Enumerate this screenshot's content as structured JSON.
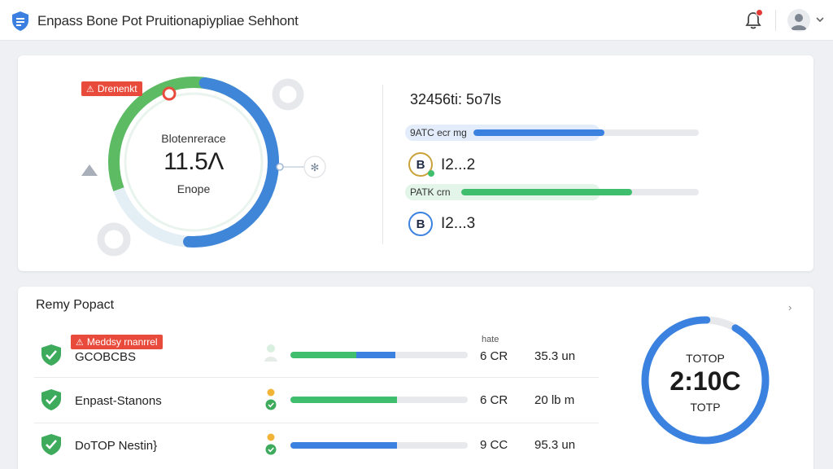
{
  "header": {
    "title": "Enpass Bone Pot Pruitionapiypliae Sehhont",
    "logo_icon": "shield-doc-icon",
    "notification_icon": "bell-icon",
    "avatar_icon": "user-avatar-icon",
    "menu_icon": "chevron-down-icon"
  },
  "overview": {
    "alert_label": "Drenenkt",
    "ring": {
      "title": "Blotenrerace",
      "value": "11.5Λ",
      "subtitle": "Enope",
      "progress": 0.78
    },
    "stat_title": "32456ti: 5o7ls",
    "bars": [
      {
        "label": "9ATC  ecr  mg",
        "fill": 0.58,
        "color": "#3b82e0"
      },
      {
        "label": "PATK  crn",
        "fill": 0.72,
        "color": "#3fbf6e"
      }
    ],
    "items": [
      {
        "badge": "B",
        "value": "I2...2"
      },
      {
        "badge": "B",
        "value": "I2...3"
      }
    ]
  },
  "report": {
    "title": "Remy Popact",
    "alert_label": "Meddsy rnanrrel",
    "column_header": "hate",
    "rows": [
      {
        "name": "GCOBCBS",
        "v1": "6 CR",
        "v2": "35.3 un",
        "green": 0.37,
        "blue": 0.22
      },
      {
        "name": "Enpast-Stanons",
        "v1": "6 CR",
        "v2": "20 lb m",
        "green": 0.6,
        "blue": 0.0
      },
      {
        "name": "DoTOP Nestin}",
        "v1": "9 CC",
        "v2": "95.3 un",
        "green": 0.0,
        "blue": 0.6
      }
    ],
    "gauge": {
      "top_label": "TOTOP",
      "value": "2:10C",
      "bottom_label": "TOTP",
      "progress": 0.92
    }
  },
  "colors": {
    "accent_blue": "#3b82e0",
    "accent_green": "#3fbf6e",
    "alert_red": "#e84b3c"
  }
}
